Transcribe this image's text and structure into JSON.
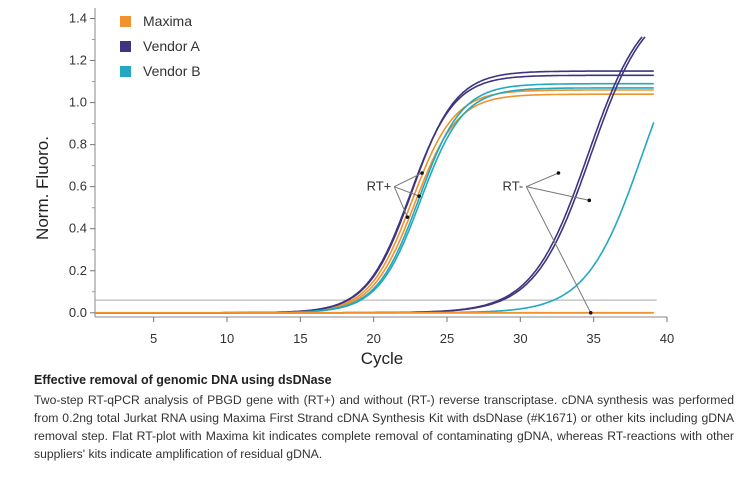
{
  "chart_data": {
    "type": "line",
    "xlabel": "Cycle",
    "ylabel": "Norm. Fluoro.",
    "xlim": [
      1,
      40
    ],
    "ylim": [
      -0.02,
      1.45
    ],
    "xticks": [
      5,
      10,
      15,
      20,
      25,
      30,
      35,
      40
    ],
    "yticks": [
      0.0,
      0.2,
      0.4,
      0.6,
      0.8,
      1.0,
      1.2,
      1.4
    ],
    "xtick_labels": [
      "5",
      "10",
      "15",
      "20",
      "25",
      "30",
      "35",
      "40"
    ],
    "ytick_labels": [
      "0.0",
      "0.2",
      "0.4",
      "0.6",
      "0.8",
      "1.0",
      "1.2",
      "1.4"
    ],
    "threshold": 0.06,
    "legend": {
      "position": "top-left",
      "entries": [
        {
          "name": "Maxima",
          "color": "#f0922d"
        },
        {
          "name": "Vendor A",
          "color": "#3d3580"
        },
        {
          "name": "Vendor B",
          "color": "#23a8bf"
        }
      ]
    },
    "series": [
      {
        "name": "Maxima",
        "group": "RT+",
        "color": "#f0922d",
        "plateau": 1.06,
        "midpoint": 22.6,
        "slope": 1.45
      },
      {
        "name": "Maxima",
        "group": "RT+",
        "color": "#f0922d",
        "plateau": 1.04,
        "midpoint": 22.8,
        "slope": 1.45
      },
      {
        "name": "Vendor A",
        "group": "RT+",
        "color": "#3d3580",
        "plateau": 1.15,
        "midpoint": 22.6,
        "slope": 1.5
      },
      {
        "name": "Vendor A",
        "group": "RT+",
        "color": "#3d3580",
        "plateau": 1.13,
        "midpoint": 22.5,
        "slope": 1.5
      },
      {
        "name": "Vendor B",
        "group": "RT+",
        "color": "#23a8bf",
        "plateau": 1.09,
        "midpoint": 23.1,
        "slope": 1.45
      },
      {
        "name": "Vendor B",
        "group": "RT+",
        "color": "#23a8bf",
        "plateau": 1.07,
        "midpoint": 23.2,
        "slope": 1.45
      },
      {
        "name": "Vendor A",
        "group": "RT-",
        "color": "#3d3580",
        "plateau": 1.5,
        "midpoint": 34.8,
        "slope": 1.9
      },
      {
        "name": "Vendor A",
        "group": "RT-",
        "color": "#3d3580",
        "plateau": 1.5,
        "midpoint": 34.6,
        "slope": 1.9
      },
      {
        "name": "Vendor B",
        "group": "RT-",
        "color": "#23a8bf",
        "plateau": 1.5,
        "midpoint": 38.3,
        "slope": 1.9
      },
      {
        "name": "Maxima",
        "group": "RT-",
        "color": "#f0922d",
        "flat": 0.0
      }
    ],
    "annotations": [
      {
        "text": "RT+",
        "x": 21.2,
        "y": 0.6,
        "targets": [
          [
            23.3,
            0.665
          ],
          [
            23.1,
            0.555
          ],
          [
            22.3,
            0.455
          ]
        ]
      },
      {
        "text": "RT-",
        "x": 30.2,
        "y": 0.6,
        "targets": [
          [
            32.6,
            0.665
          ],
          [
            34.7,
            0.535
          ],
          [
            34.8,
            0.0
          ]
        ]
      }
    ]
  },
  "caption": {
    "title": "Effective removal of genomic DNA using dsDNase",
    "body": "Two-step RT-qPCR analysis of PBGD gene with (RT+) and without (RT-) reverse transcriptase. cDNA synthesis was performed from 0.2ng total Jurkat RNA using Maxima First Strand cDNA Synthesis Kit with dsDNase (#K1671) or other kits including gDNA removal step. Flat RT-plot with Maxima kit indicates complete removal of contaminating gDNA, whereas RT-reactions with other suppliers' kits indicate amplification of residual gDNA."
  }
}
